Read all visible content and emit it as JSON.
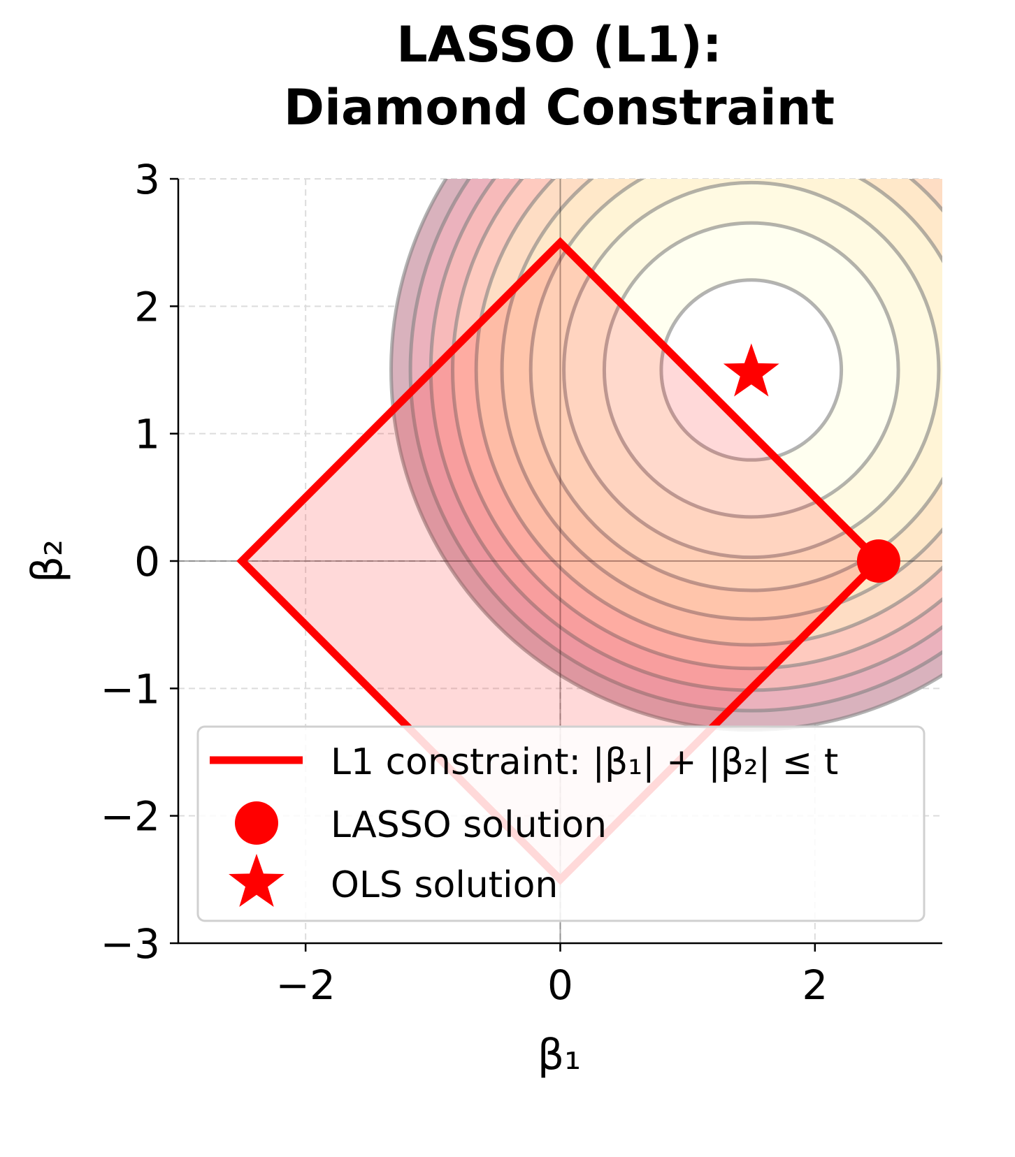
{
  "chart_data": {
    "type": "contour",
    "title": "LASSO (L1):\nDiamond Constraint",
    "title_lines": [
      "LASSO (L1):",
      "Diamond Constraint"
    ],
    "xlabel": "β₁",
    "ylabel": "β₂",
    "xlim": [
      -3,
      3
    ],
    "ylim": [
      -3,
      3
    ],
    "xticks": [
      -2,
      0,
      2
    ],
    "xtick_labels": [
      "−2",
      "0",
      "2"
    ],
    "yticks": [
      -3,
      -2,
      -1,
      0,
      1,
      2,
      3
    ],
    "ytick_labels": [
      "−3",
      "−2",
      "−1",
      "0",
      "1",
      "2",
      "3"
    ],
    "grid": true,
    "contours": {
      "center": [
        1.5,
        1.5
      ],
      "function": "(β₁−1.5)² + (β₂−1.5)²",
      "levels": [
        0.5,
        1.333,
        2.167,
        3.0,
        3.833,
        4.667,
        5.5,
        6.333,
        7.167,
        8.0
      ],
      "colormap": "YlOrRd",
      "colors": [
        "#ffffcc",
        "#ffeda0",
        "#fed976",
        "#feb24c",
        "#fd8d3c",
        "#fc4e2a",
        "#e31a1c",
        "#bd0026",
        "#800026"
      ],
      "line_color": "#808080"
    },
    "constraint": {
      "t": 2.5,
      "vertices": [
        [
          2.5,
          0
        ],
        [
          0,
          2.5
        ],
        [
          -2.5,
          0
        ],
        [
          0,
          -2.5
        ]
      ],
      "color": "#ff0000"
    },
    "points": [
      {
        "name": "LASSO solution",
        "x": 2.5,
        "y": 0,
        "marker": "circle",
        "color": "#ff0000"
      },
      {
        "name": "OLS solution",
        "x": 1.5,
        "y": 1.5,
        "marker": "star",
        "color": "#ff0000"
      }
    ],
    "legend": {
      "placement": "lower right",
      "entries": [
        "L1 constraint: |β₁| + |β₂| ≤ t",
        "LASSO solution",
        "OLS solution"
      ]
    }
  }
}
